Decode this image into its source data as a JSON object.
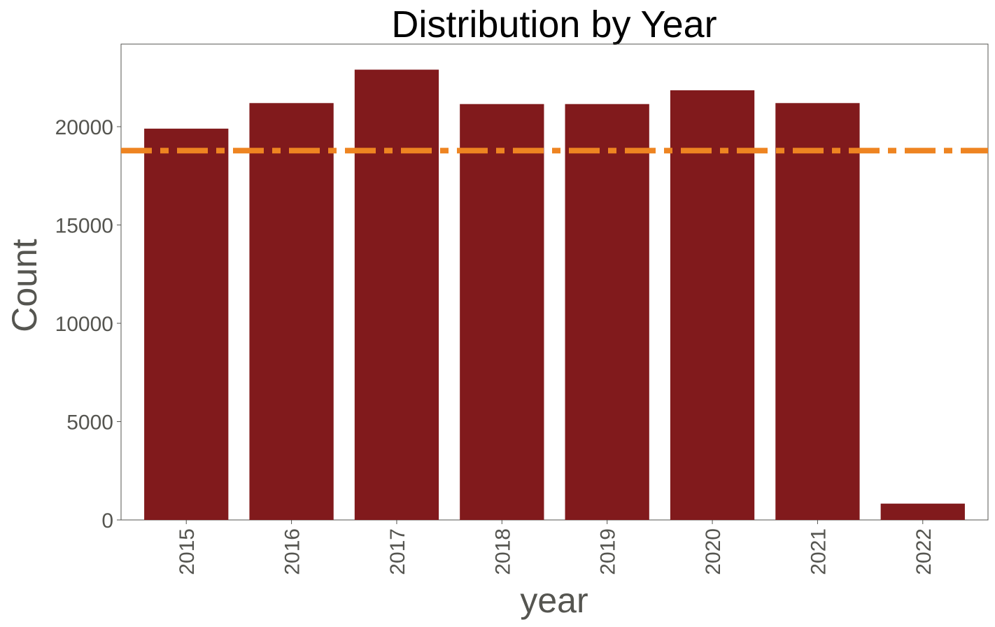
{
  "chart_data": {
    "type": "bar",
    "title": "Distribution by Year",
    "xlabel": "year",
    "ylabel": "Count",
    "categories": [
      "2015",
      "2016",
      "2017",
      "2018",
      "2019",
      "2020",
      "2021",
      "2022"
    ],
    "values": [
      19900,
      21200,
      22900,
      21150,
      21150,
      21850,
      21200,
      830
    ],
    "ylim": [
      0,
      24200
    ],
    "yticks": [
      0,
      5000,
      10000,
      15000,
      20000
    ],
    "ytick_labels": [
      "0",
      "5000",
      "10000",
      "15000",
      "20000"
    ],
    "reference_line": {
      "value": 18780,
      "style": "dash-dot"
    },
    "grid": false,
    "colors": {
      "bar": "#811a1c",
      "reference_line": "#ee8421",
      "axes": "#555550"
    }
  }
}
